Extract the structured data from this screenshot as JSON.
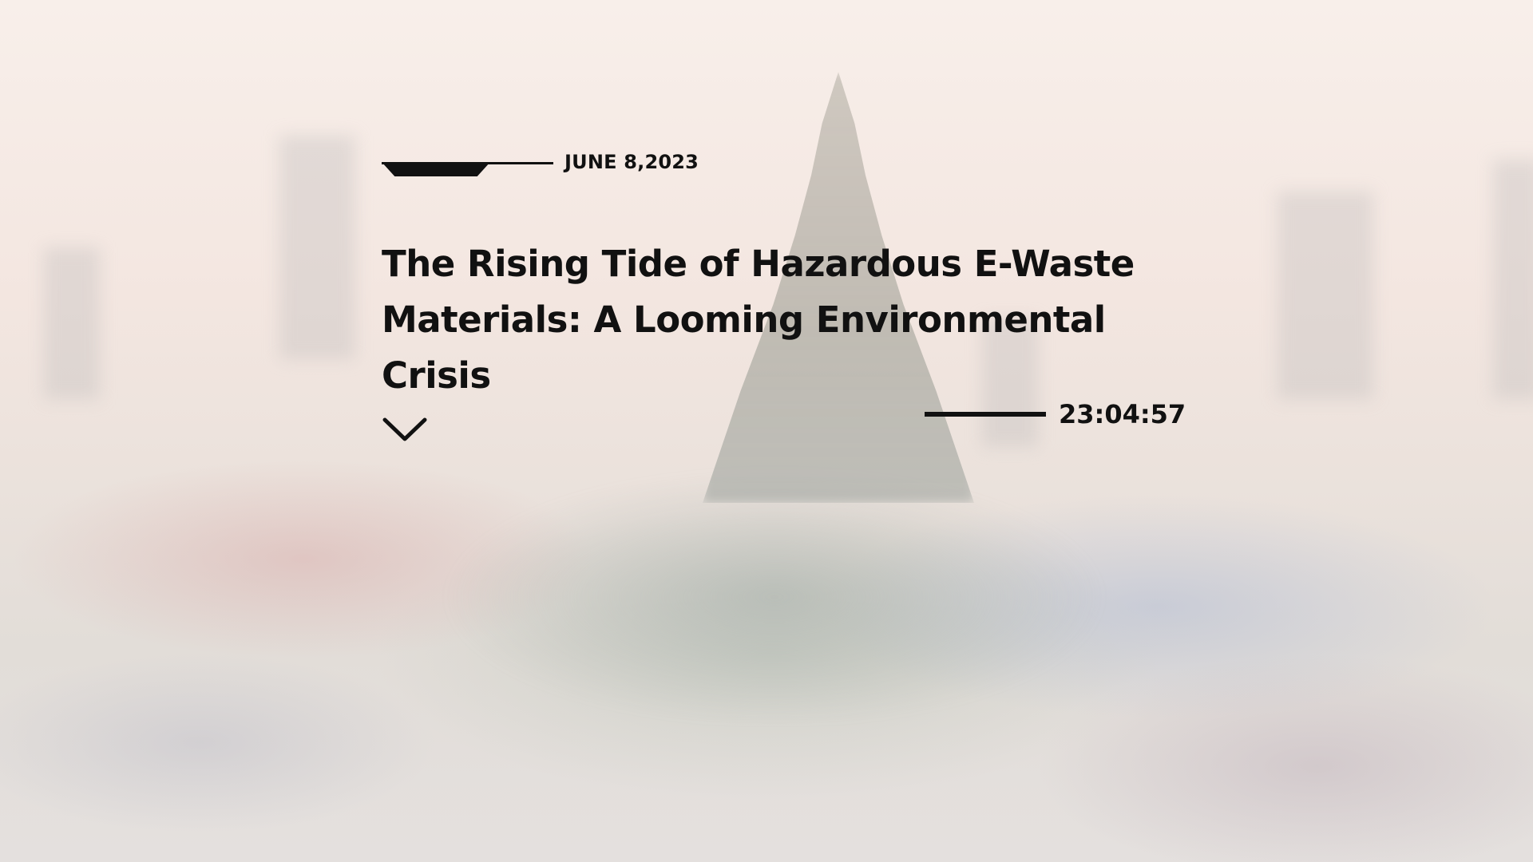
{
  "article": {
    "date": "JUNE 8,2023",
    "title": "The Rising Tide of Hazardous E-Waste Materials: A Looming Environmental Crisis",
    "time": "23:04:57"
  },
  "icons": {
    "scroll": "chevron-down-icon"
  },
  "colors": {
    "text": "#111111",
    "background": "#f3eeea"
  }
}
